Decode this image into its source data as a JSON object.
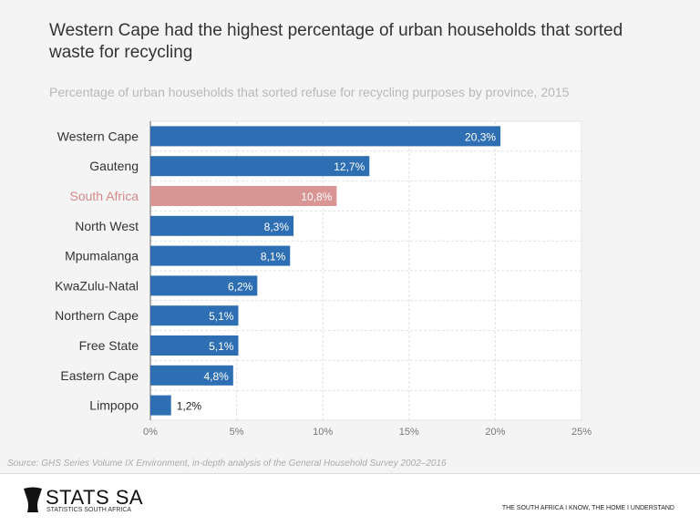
{
  "title": "Western Cape had the highest percentage of urban households that sorted waste for recycling",
  "subtitle": "Percentage of urban households that sorted refuse for recycling purposes by province, 2015",
  "source": "Source: GHS Series Volume IX Environment,  in-depth analysis of the General Household Survey 2002–2016",
  "footer": {
    "logo_text": "STATS SA",
    "logo_sub": "STATISTICS SOUTH AFRICA",
    "tagline": "THE SOUTH AFRICA I KNOW, THE HOME I UNDERSTAND"
  },
  "chart_data": {
    "type": "bar",
    "orientation": "horizontal",
    "categories": [
      "Western Cape",
      "Gauteng",
      "South Africa",
      "North West",
      "Mpumalanga",
      "KwaZulu-Natal",
      "Northern Cape",
      "Free State",
      "Eastern Cape",
      "Limpopo"
    ],
    "values": [
      20.3,
      12.7,
      10.8,
      8.3,
      8.1,
      6.2,
      5.1,
      5.1,
      4.8,
      1.2
    ],
    "data_labels": [
      "20,3%",
      "12,7%",
      "10,8%",
      "8,3%",
      "8,1%",
      "6,2%",
      "5,1%",
      "5,1%",
      "4,8%",
      "1,2%"
    ],
    "highlight": "South Africa",
    "colors": {
      "bar": "#2e6fb3",
      "highlight": "#d99593",
      "highlight_label": "#d48a88"
    },
    "xlim": [
      0,
      25
    ],
    "xticks": [
      0,
      5,
      10,
      15,
      20,
      25
    ],
    "xtick_labels": [
      "0%",
      "5%",
      "10%",
      "15%",
      "20%",
      "25%"
    ],
    "grid": true
  }
}
